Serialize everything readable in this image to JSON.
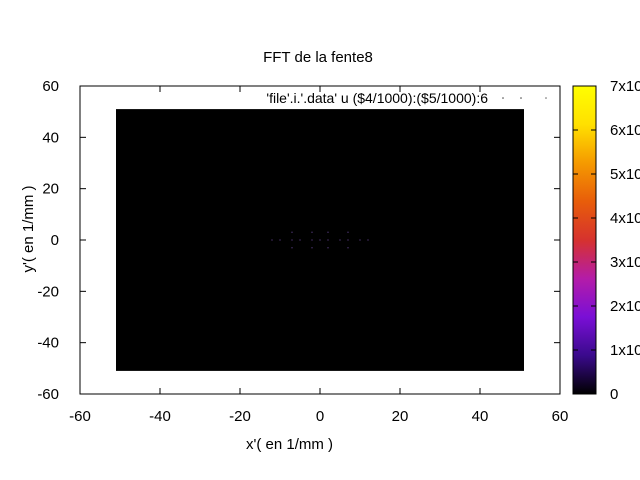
{
  "chart_data": {
    "type": "heatmap",
    "title": "FFT de la fente8",
    "xlabel": "x'( en 1/mm )",
    "ylabel": "y'( en 1/mm )",
    "xlim": [
      -60,
      60
    ],
    "ylim": [
      -60,
      60
    ],
    "x_ticks": [
      "-60",
      "-40",
      "-20",
      "0",
      "20",
      "40",
      "60"
    ],
    "y_ticks": [
      "-60",
      "-40",
      "-20",
      "0",
      "20",
      "40",
      "60"
    ],
    "x_tick_values": [
      -60,
      -40,
      -20,
      0,
      20,
      40,
      60
    ],
    "y_tick_values": [
      -60,
      -40,
      -20,
      0,
      20,
      40,
      60
    ],
    "legend": "'file'.i.'.data' u ($4/1000):($5/1000):6",
    "legend_position": "top-right",
    "data_extent": {
      "x": [
        -51,
        51
      ],
      "y": [
        -51,
        51
      ]
    },
    "background_value": 0,
    "bright_points": [
      {
        "x": -12,
        "y": 0
      },
      {
        "x": -10,
        "y": 0
      },
      {
        "x": -7,
        "y": 0
      },
      {
        "x": -5,
        "y": 0
      },
      {
        "x": -2,
        "y": 0
      },
      {
        "x": 0,
        "y": 0
      },
      {
        "x": 2,
        "y": 0
      },
      {
        "x": 5,
        "y": 0
      },
      {
        "x": 7,
        "y": 0
      },
      {
        "x": 10,
        "y": 0
      },
      {
        "x": 12,
        "y": 0
      },
      {
        "x": -7,
        "y": 3
      },
      {
        "x": -2,
        "y": 3
      },
      {
        "x": 2,
        "y": 3
      },
      {
        "x": 7,
        "y": 3
      },
      {
        "x": -7,
        "y": -3
      },
      {
        "x": -2,
        "y": -3
      },
      {
        "x": 2,
        "y": -3
      },
      {
        "x": 7,
        "y": -3
      }
    ],
    "colorbar": {
      "ticks": [
        "0",
        "1x10",
        "2x10",
        "3x10",
        "4x10",
        "5x10",
        "6x10",
        "7x10"
      ],
      "tick_fractions": [
        0,
        0.1429,
        0.2857,
        0.4286,
        0.5714,
        0.7143,
        0.8571,
        1.0
      ],
      "palette": [
        "#000000",
        "#3a0a8c",
        "#7a0fd6",
        "#b41ca8",
        "#d6322e",
        "#e85d0a",
        "#f59a00",
        "#ffe000",
        "#ffff00"
      ]
    },
    "grid": false
  }
}
